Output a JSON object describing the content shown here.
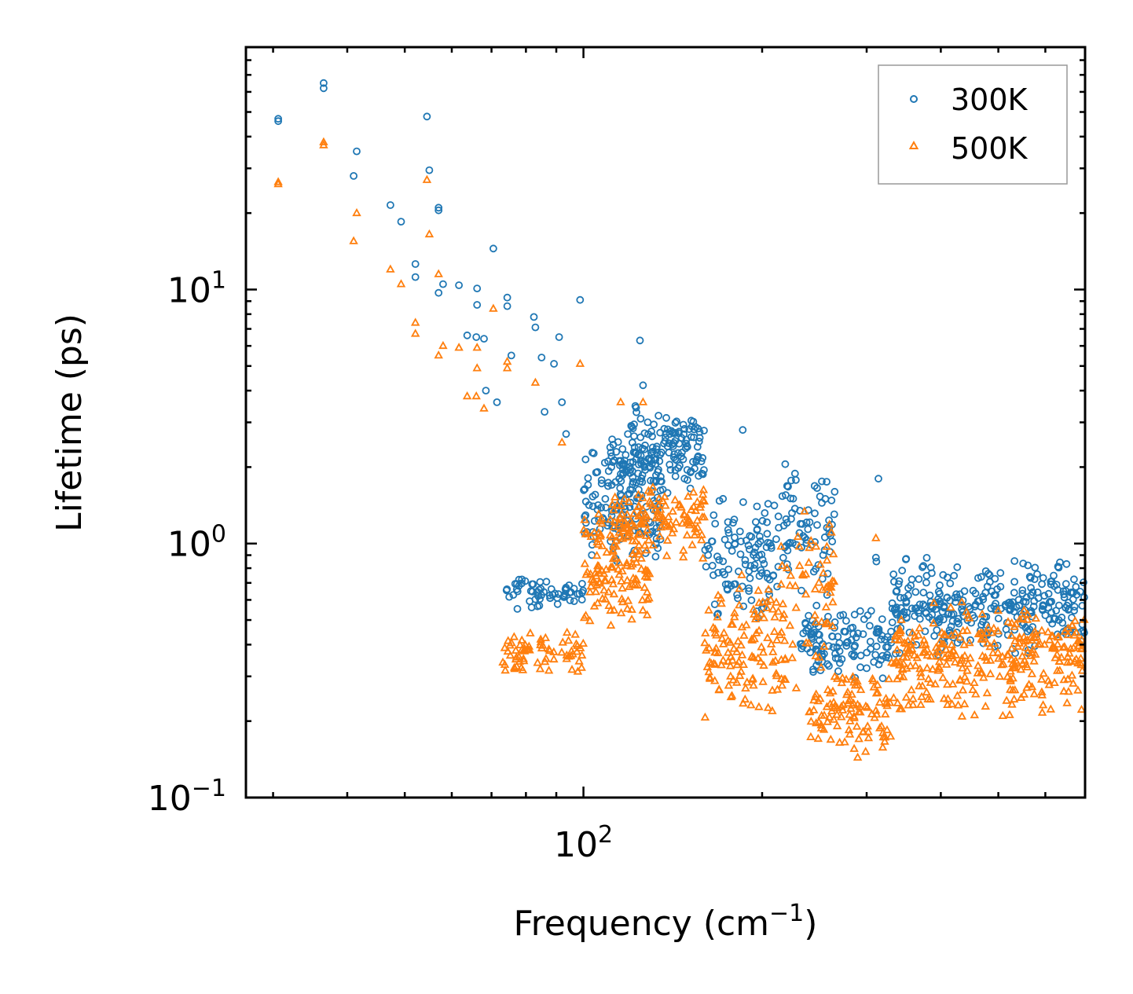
{
  "chart_data": {
    "type": "scatter",
    "title": "",
    "xlabel_base": "Frequency (cm",
    "xlabel_sup": "−1",
    "xlabel_end": ")",
    "ylabel": "Lifetime (ps)",
    "xscale": "log",
    "yscale": "log",
    "xlim": [
      27,
      700
    ],
    "ylim": [
      0.1,
      90
    ],
    "x_ticks": [
      {
        "value": 100,
        "base": "10",
        "exp": "2"
      }
    ],
    "y_ticks": [
      {
        "value": 0.1,
        "base": "10",
        "exp": "−1"
      },
      {
        "value": 1,
        "base": "10",
        "exp": "0"
      },
      {
        "value": 10,
        "base": "10",
        "exp": "1"
      }
    ],
    "legend_position": "top-right",
    "series": [
      {
        "name": "300K",
        "marker": "circle",
        "color": "#1f77b4",
        "seed": 7,
        "anchor_points": [
          [
            30.6,
            46
          ],
          [
            30.6,
            47
          ],
          [
            36.5,
            62
          ],
          [
            36.5,
            65
          ],
          [
            41,
            28
          ],
          [
            41.5,
            35
          ],
          [
            47.3,
            21.5
          ],
          [
            49.3,
            18.5
          ],
          [
            52.1,
            11.2
          ],
          [
            52.1,
            12.6
          ],
          [
            54.5,
            48
          ],
          [
            55,
            29.5
          ],
          [
            57,
            20.5
          ],
          [
            57,
            21
          ],
          [
            57,
            9.7
          ],
          [
            58,
            10.5
          ],
          [
            61.7,
            10.4
          ],
          [
            63.7,
            6.6
          ],
          [
            66,
            6.5
          ],
          [
            66.2,
            8.7
          ],
          [
            66.2,
            10.1
          ],
          [
            68,
            6.4
          ],
          [
            68.5,
            4
          ],
          [
            70.5,
            14.5
          ],
          [
            71.5,
            3.6
          ],
          [
            74.4,
            9.3
          ],
          [
            74.4,
            8.6
          ],
          [
            75.6,
            5.5
          ],
          [
            82.5,
            7.8
          ],
          [
            83,
            7.1
          ],
          [
            85,
            5.4
          ],
          [
            86,
            3.3
          ],
          [
            89.2,
            5.1
          ],
          [
            91,
            6.5
          ],
          [
            92,
            3.6
          ],
          [
            93.5,
            2.7
          ],
          [
            98.7,
            9.1
          ],
          [
            124.5,
            6.3
          ],
          [
            126,
            4.2
          ],
          [
            185.5,
            2.8
          ],
          [
            196,
            1.4
          ],
          [
            265,
            1.6
          ],
          [
            314,
            1.8
          ],
          [
            311,
            0.88
          ],
          [
            311.5,
            0.85
          ]
        ],
        "clusters": [
          {
            "x_range": [
              73,
              100
            ],
            "y_range": [
              0.55,
              0.75
            ],
            "n": 60,
            "note": "low band rising"
          },
          {
            "x_range": [
              100,
              135
            ],
            "y_range": [
              0.8,
              2.5
            ],
            "n": 140
          },
          {
            "x_range": [
              110,
              160
            ],
            "y_range": [
              1.5,
              3.0
            ],
            "n": 120
          },
          {
            "x_range": [
              120,
              160
            ],
            "y_range": [
              2.0,
              3.8
            ],
            "n": 60
          },
          {
            "x_range": [
              160,
              215
            ],
            "y_range": [
              0.5,
              1.6
            ],
            "n": 110
          },
          {
            "x_range": [
              215,
              265
            ],
            "y_range": [
              0.55,
              2.5
            ],
            "n": 70,
            "note": "peak near 255"
          },
          {
            "x_range": [
              230,
              330
            ],
            "y_range": [
              0.28,
              0.6
            ],
            "n": 120
          },
          {
            "x_range": [
              330,
              700
            ],
            "y_range": [
              0.35,
              0.9
            ],
            "n": 320
          }
        ]
      },
      {
        "name": "500K",
        "marker": "triangle",
        "color": "#ff7f0e",
        "seed": 13,
        "anchor_points": [
          [
            30.6,
            26
          ],
          [
            30.6,
            26.5
          ],
          [
            36.5,
            37
          ],
          [
            36.5,
            38
          ],
          [
            41,
            15.5
          ],
          [
            41.5,
            20
          ],
          [
            47.3,
            12
          ],
          [
            49.3,
            10.5
          ],
          [
            52.1,
            6.7
          ],
          [
            52.1,
            7.4
          ],
          [
            54.5,
            27
          ],
          [
            55,
            16.5
          ],
          [
            57,
            11.5
          ],
          [
            57,
            5.5
          ],
          [
            58,
            6
          ],
          [
            61.7,
            5.9
          ],
          [
            63.7,
            3.8
          ],
          [
            66,
            3.8
          ],
          [
            66.2,
            4.9
          ],
          [
            66.2,
            5.9
          ],
          [
            68,
            3.4
          ],
          [
            70.5,
            8.4
          ],
          [
            74.4,
            5.2
          ],
          [
            74.4,
            4.9
          ],
          [
            83,
            4.3
          ],
          [
            92,
            2.5
          ],
          [
            98.7,
            5.1
          ],
          [
            115.5,
            3.6
          ],
          [
            126,
            3.6
          ],
          [
            311,
            1.05
          ]
        ],
        "clusters": [
          {
            "x_range": [
              73,
              100
            ],
            "y_range": [
              0.3,
              0.45
            ],
            "n": 70
          },
          {
            "x_range": [
              100,
              130
            ],
            "y_range": [
              0.45,
              1.5
            ],
            "n": 130
          },
          {
            "x_range": [
              110,
              160
            ],
            "y_range": [
              0.8,
              1.8
            ],
            "n": 120
          },
          {
            "x_range": [
              160,
              220
            ],
            "y_range": [
              0.2,
              0.8
            ],
            "n": 130
          },
          {
            "x_range": [
              215,
              265
            ],
            "y_range": [
              0.25,
              1.4
            ],
            "n": 60
          },
          {
            "x_range": [
              240,
              330
            ],
            "y_range": [
              0.14,
              0.35
            ],
            "n": 110
          },
          {
            "x_range": [
              330,
              700
            ],
            "y_range": [
              0.2,
              0.6
            ],
            "n": 320
          }
        ]
      }
    ]
  }
}
